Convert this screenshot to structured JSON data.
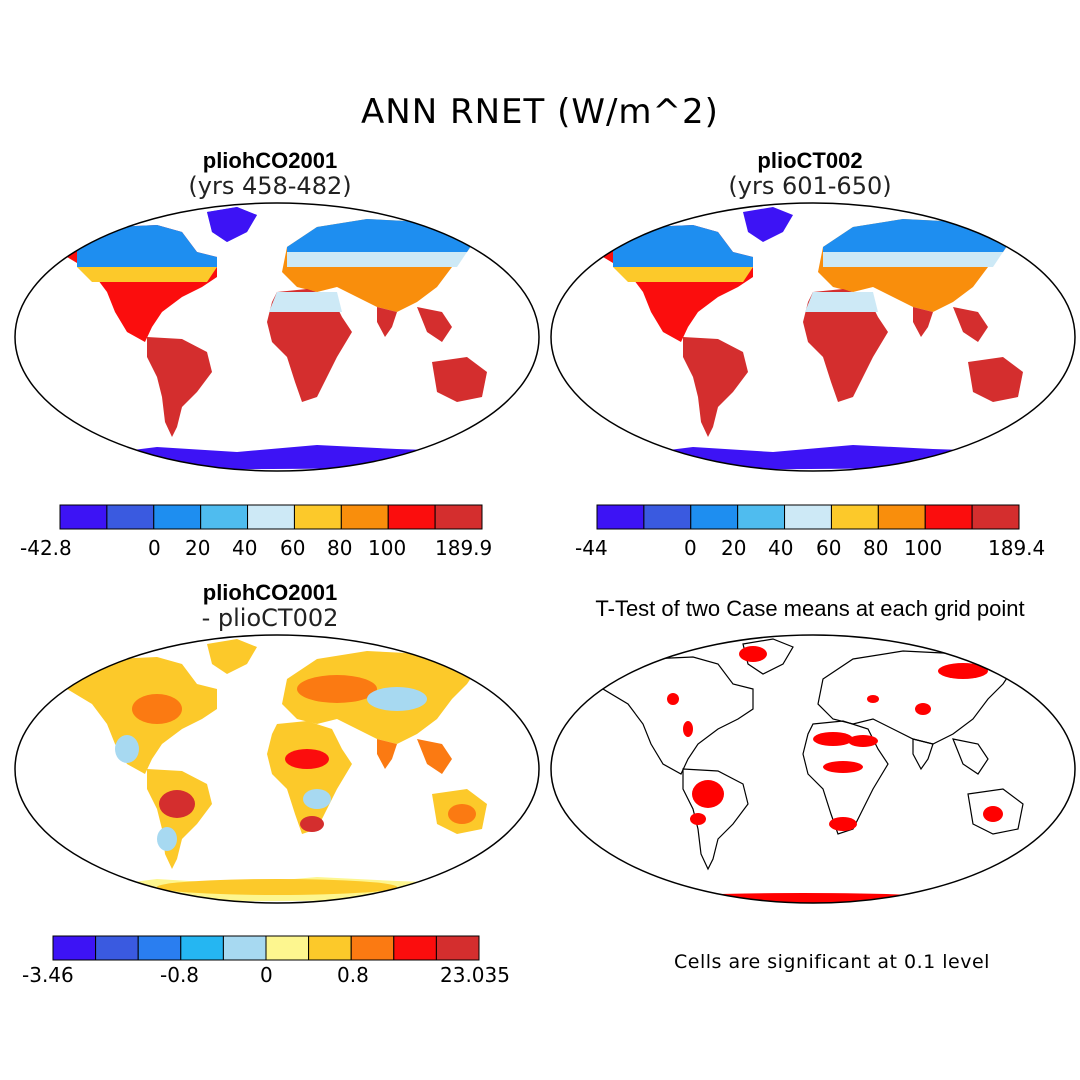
{
  "figure": {
    "title": "ANN RNET (W/m^2)"
  },
  "panels": [
    {
      "title": "pliohCO2001",
      "subtitle": "(yrs 458-482)",
      "colorbar": {
        "colors": [
          "#3d13f5",
          "#3a5ae0",
          "#1e8ef0",
          "#4fbcef",
          "#cde9f6",
          "#fcc92a",
          "#f98e0c",
          "#fb0d0d",
          "#d42e2e"
        ],
        "tick_labels": [
          "-42.8",
          "0",
          "20",
          "40",
          "60",
          "80",
          "100",
          "189.9"
        ]
      }
    },
    {
      "title": "plioCT002",
      "subtitle": "(yrs 601-650)",
      "colorbar": {
        "colors": [
          "#3d13f5",
          "#3a5ae0",
          "#1e8ef0",
          "#4fbcef",
          "#cde9f6",
          "#fcc92a",
          "#f98e0c",
          "#fb0d0d",
          "#d42e2e"
        ],
        "tick_labels": [
          "-44",
          "0",
          "20",
          "40",
          "60",
          "80",
          "100",
          "189.4"
        ]
      }
    },
    {
      "title": "pliohCO2001",
      "subtitle": "- plioCT002",
      "colorbar": {
        "colors": [
          "#3d13f5",
          "#3a5ae0",
          "#2a7ef0",
          "#25b6f2",
          "#a7d9f1",
          "#fdf68f",
          "#fcc92a",
          "#fb7a12",
          "#fb0d0d",
          "#d42e2e"
        ],
        "tick_labels": [
          "-3.46",
          "-0.8",
          "0",
          "0.8",
          "23.035"
        ]
      }
    },
    {
      "title": "T-Test of two Case means at each grid point",
      "colors": [
        "#ff0000"
      ]
    }
  ],
  "footnote": "Cells are significant at 0.1 level"
}
